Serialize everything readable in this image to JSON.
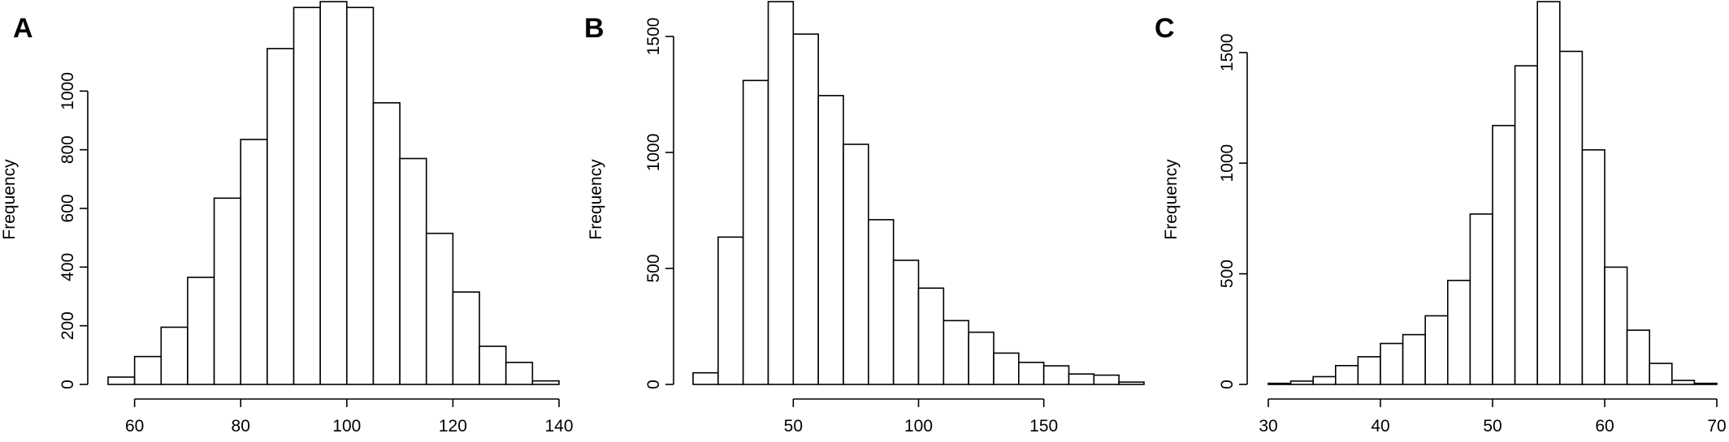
{
  "chart_data": [
    {
      "type": "bar",
      "panel_label": "A",
      "title": "",
      "xlabel": "",
      "ylabel": "Frequency",
      "grid": false,
      "bins": [
        [
          55,
          60
        ],
        [
          60,
          65
        ],
        [
          65,
          70
        ],
        [
          70,
          75
        ],
        [
          75,
          80
        ],
        [
          80,
          85
        ],
        [
          85,
          90
        ],
        [
          90,
          95
        ],
        [
          95,
          100
        ],
        [
          100,
          105
        ],
        [
          105,
          110
        ],
        [
          110,
          115
        ],
        [
          115,
          120
        ],
        [
          120,
          125
        ],
        [
          125,
          130
        ],
        [
          130,
          135
        ],
        [
          135,
          140
        ]
      ],
      "values": [
        25,
        95,
        195,
        365,
        635,
        835,
        1145,
        1285,
        1305,
        1285,
        960,
        770,
        515,
        315,
        130,
        75,
        12
      ],
      "xticks": [
        60,
        80,
        100,
        120,
        140
      ],
      "xlim": [
        55,
        140
      ],
      "yticks": [
        0,
        200,
        400,
        600,
        800,
        1000
      ],
      "ylim": [
        0,
        1305
      ]
    },
    {
      "type": "bar",
      "panel_label": "B",
      "title": "",
      "xlabel": "",
      "ylabel": "Frequency",
      "grid": false,
      "bins": [
        [
          10,
          20
        ],
        [
          20,
          30
        ],
        [
          30,
          40
        ],
        [
          40,
          50
        ],
        [
          50,
          60
        ],
        [
          60,
          70
        ],
        [
          70,
          80
        ],
        [
          80,
          90
        ],
        [
          90,
          100
        ],
        [
          100,
          110
        ],
        [
          110,
          120
        ],
        [
          120,
          130
        ],
        [
          130,
          140
        ],
        [
          140,
          150
        ],
        [
          150,
          160
        ],
        [
          160,
          170
        ],
        [
          170,
          180
        ],
        [
          180,
          190
        ]
      ],
      "values": [
        50,
        635,
        1310,
        1650,
        1510,
        1245,
        1035,
        710,
        535,
        415,
        275,
        225,
        135,
        95,
        80,
        45,
        40,
        10
      ],
      "xticks": [
        50,
        100,
        150
      ],
      "xlim": [
        10,
        190
      ],
      "yticks": [
        0,
        500,
        1000,
        1500
      ],
      "ylim": [
        0,
        1650
      ]
    },
    {
      "type": "bar",
      "panel_label": "C",
      "title": "",
      "xlabel": "",
      "ylabel": "Frequency",
      "grid": false,
      "bins": [
        [
          30,
          32
        ],
        [
          32,
          34
        ],
        [
          34,
          36
        ],
        [
          36,
          38
        ],
        [
          38,
          40
        ],
        [
          40,
          42
        ],
        [
          42,
          44
        ],
        [
          44,
          46
        ],
        [
          46,
          48
        ],
        [
          48,
          50
        ],
        [
          50,
          52
        ],
        [
          52,
          54
        ],
        [
          54,
          56
        ],
        [
          56,
          58
        ],
        [
          58,
          60
        ],
        [
          60,
          62
        ],
        [
          62,
          64
        ],
        [
          64,
          66
        ],
        [
          66,
          68
        ],
        [
          68,
          70
        ]
      ],
      "values": [
        5,
        15,
        35,
        85,
        125,
        185,
        225,
        310,
        470,
        770,
        1170,
        1440,
        1730,
        1505,
        1060,
        530,
        245,
        95,
        18,
        5
      ],
      "xticks": [
        30,
        40,
        50,
        60,
        70
      ],
      "xlim": [
        30,
        70
      ],
      "yticks": [
        0,
        500,
        1000,
        1500
      ],
      "ylim": [
        0,
        1730
      ]
    }
  ]
}
